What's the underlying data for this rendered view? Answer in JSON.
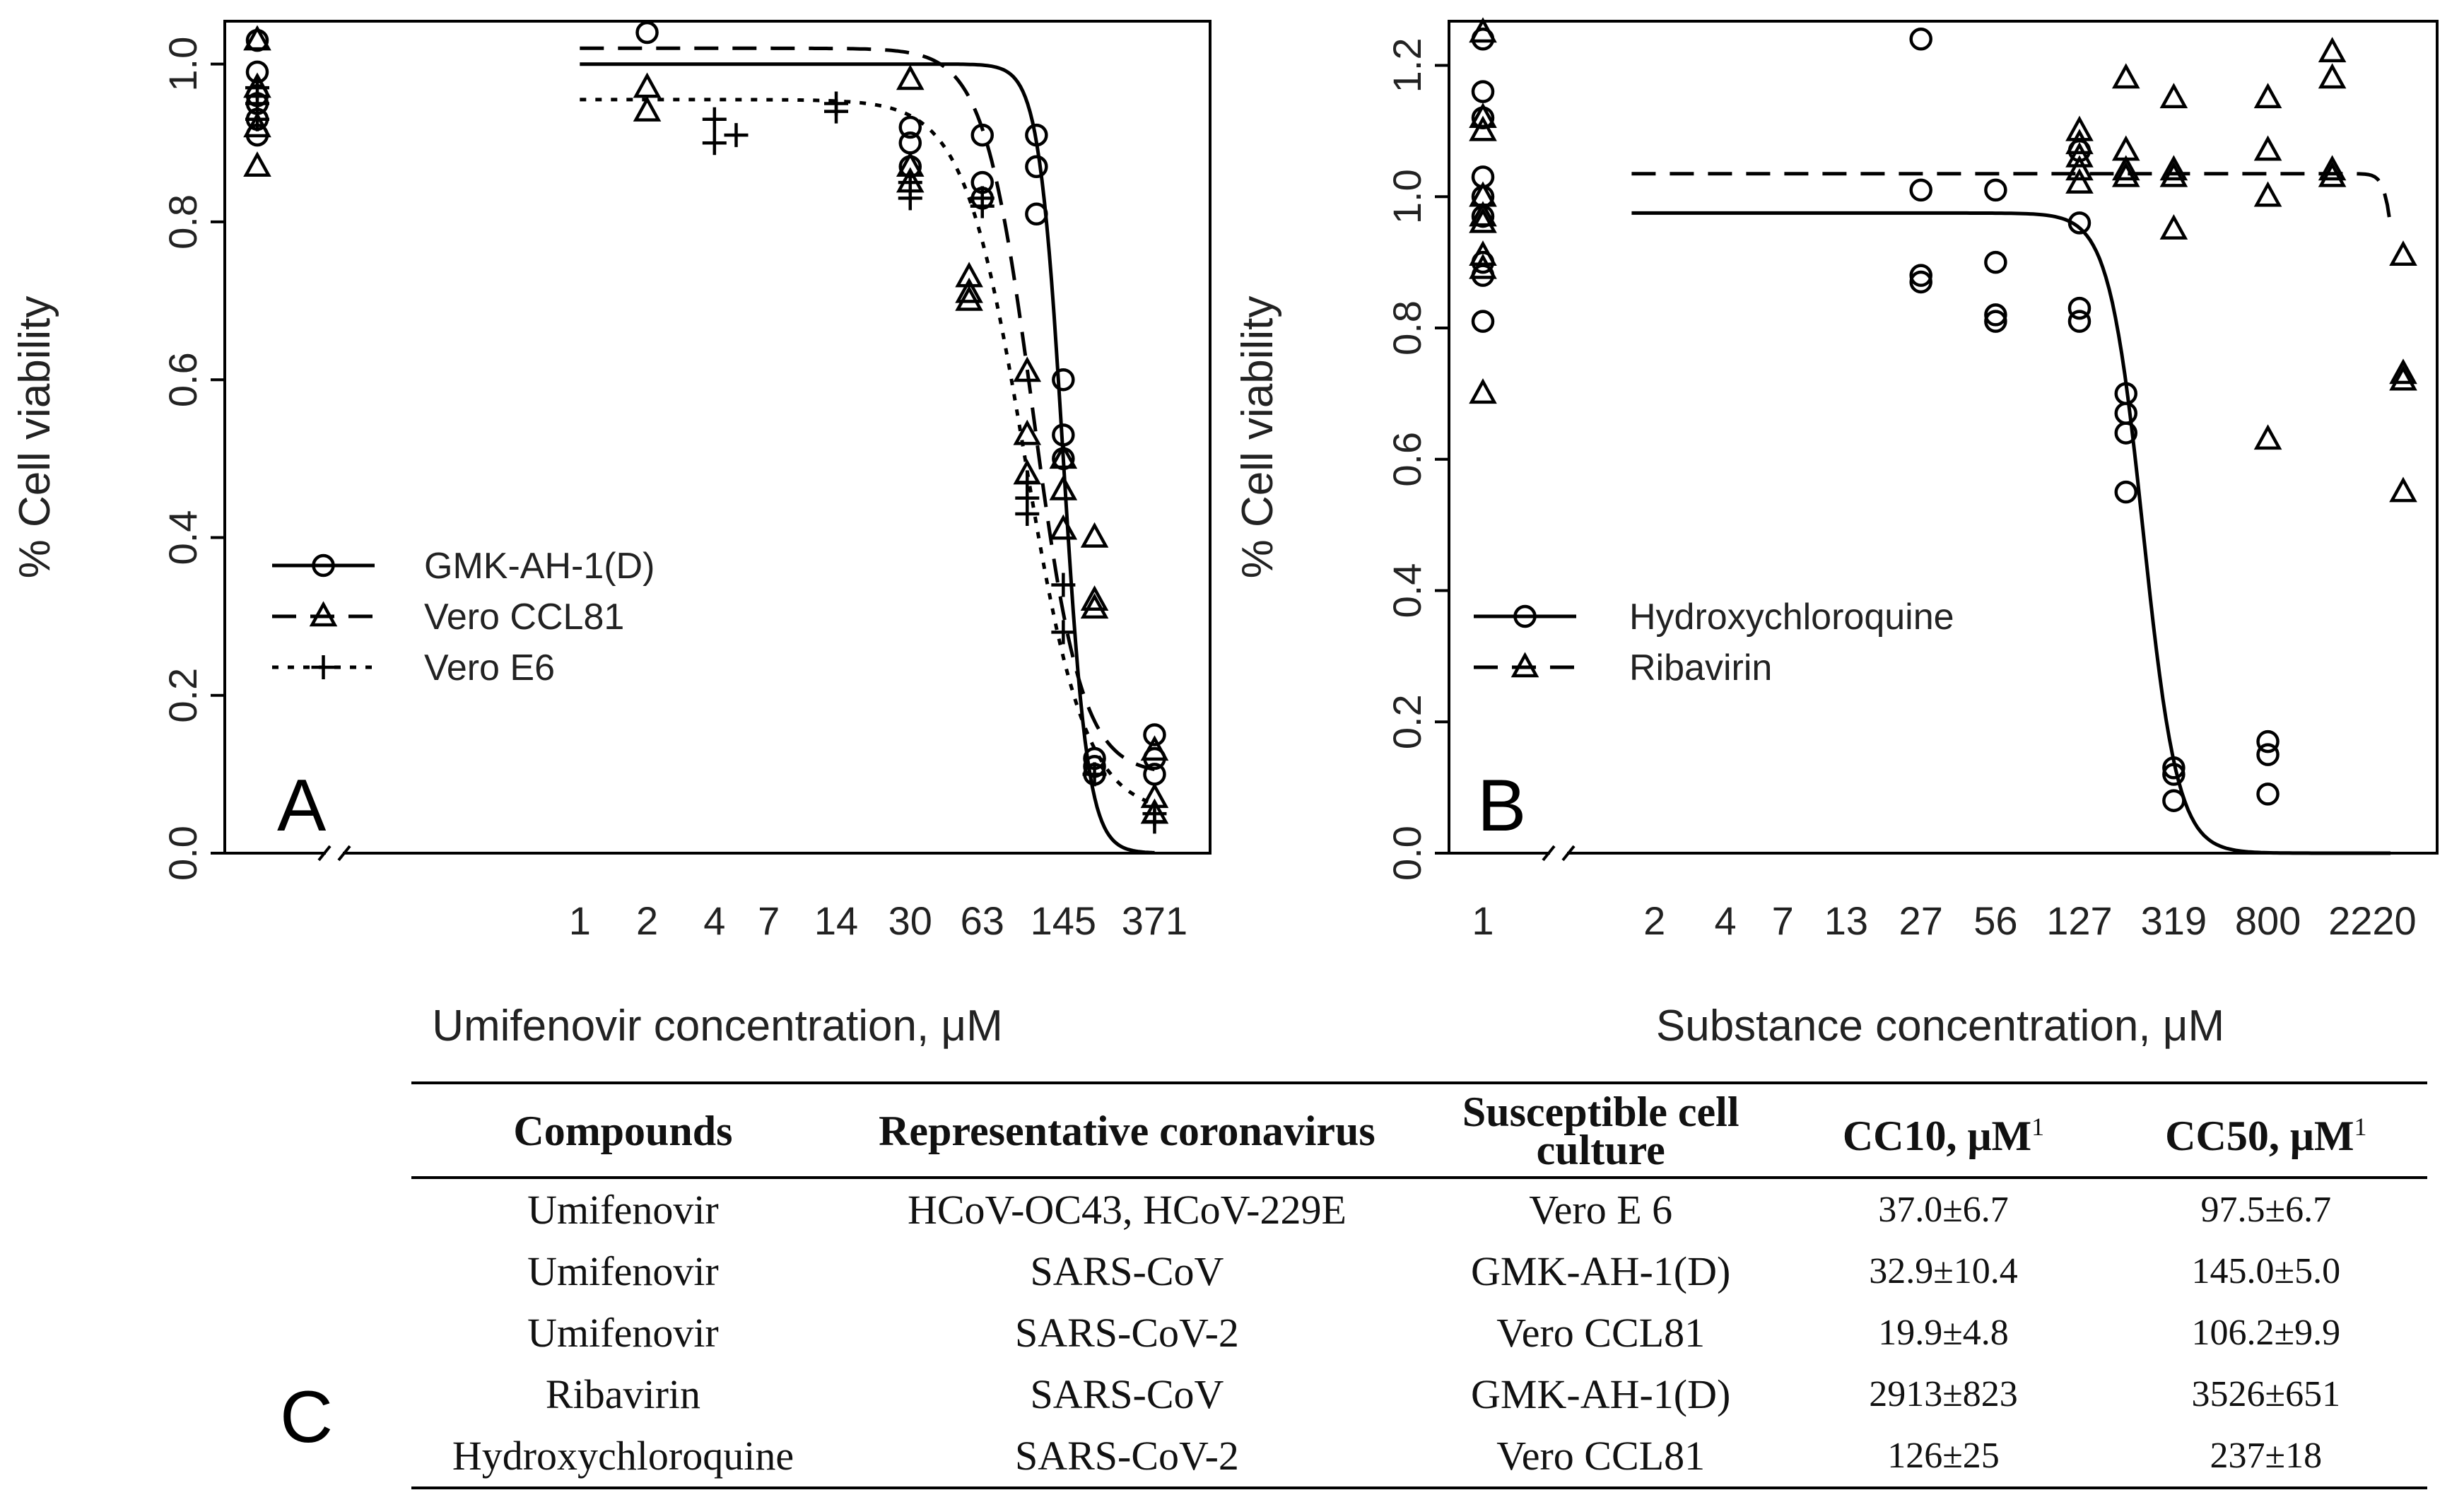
{
  "chart_data": [
    {
      "panel": "A",
      "type": "scatter",
      "xlabel": "Umifenovir concentration, μM",
      "ylabel": "% Cell viability",
      "xlim": [
        0.5,
        450
      ],
      "ylim": [
        0,
        1.04
      ],
      "x_scale": "log",
      "x_ticks": [
        1,
        2,
        4,
        7,
        14,
        30,
        63,
        145,
        371
      ],
      "y_ticks": [
        "0.0",
        "0.2",
        "0.4",
        "0.6",
        "0.8",
        "1.0"
      ],
      "axis_break": true,
      "legend_position": "center-left",
      "series": [
        {
          "name": "GMK-AH-1(D)",
          "marker": "circle",
          "line": "solid",
          "curve": {
            "top": 1.0,
            "bottom": 0.0,
            "ec50": 145,
            "hill": 8
          },
          "points": [
            [
              "control",
              1.03
            ],
            [
              "control",
              0.99
            ],
            [
              "control",
              0.96
            ],
            [
              "control",
              0.95
            ],
            [
              "control",
              0.93
            ],
            [
              "control",
              0.91
            ],
            [
              2,
              1.04
            ],
            [
              30,
              0.92
            ],
            [
              30,
              0.9
            ],
            [
              30,
              0.87
            ],
            [
              63,
              0.91
            ],
            [
              63,
              0.85
            ],
            [
              63,
              0.83
            ],
            [
              110,
              0.91
            ],
            [
              110,
              0.87
            ],
            [
              110,
              0.81
            ],
            [
              145,
              0.6
            ],
            [
              145,
              0.53
            ],
            [
              145,
              0.5
            ],
            [
              200,
              0.12
            ],
            [
              200,
              0.11
            ],
            [
              200,
              0.1
            ],
            [
              371,
              0.15
            ],
            [
              371,
              0.12
            ],
            [
              371,
              0.1
            ]
          ]
        },
        {
          "name": "Vero CCL81",
          "marker": "triangle",
          "line": "dashed",
          "curve": {
            "top": 1.02,
            "bottom": 0.1,
            "ec50": 106,
            "hill": 4
          },
          "points": [
            [
              "control",
              1.03
            ],
            [
              "control",
              0.97
            ],
            [
              "control",
              0.92
            ],
            [
              "control",
              0.87
            ],
            [
              2,
              0.97
            ],
            [
              2,
              0.94
            ],
            [
              30,
              0.98
            ],
            [
              30,
              0.87
            ],
            [
              30,
              0.85
            ],
            [
              55,
              0.73
            ],
            [
              55,
              0.71
            ],
            [
              55,
              0.7
            ],
            [
              100,
              0.61
            ],
            [
              100,
              0.53
            ],
            [
              100,
              0.48
            ],
            [
              145,
              0.5
            ],
            [
              145,
              0.46
            ],
            [
              145,
              0.41
            ],
            [
              200,
              0.4
            ],
            [
              200,
              0.32
            ],
            [
              200,
              0.31
            ],
            [
              371,
              0.13
            ],
            [
              371,
              0.07
            ],
            [
              371,
              0.05
            ]
          ]
        },
        {
          "name": "Vero E6",
          "marker": "plus",
          "line": "dotted",
          "curve": {
            "top": 0.955,
            "bottom": 0.05,
            "ec50": 97.5,
            "hill": 3.2
          },
          "points": [
            [
              "control",
              0.97
            ],
            [
              "control",
              0.95
            ],
            [
              "control",
              0.93
            ],
            [
              4,
              0.93
            ],
            [
              4,
              0.9
            ],
            [
              5,
              0.91
            ],
            [
              14,
              0.95
            ],
            [
              14,
              0.94
            ],
            [
              30,
              0.85
            ],
            [
              30,
              0.83
            ],
            [
              63,
              0.83
            ],
            [
              63,
              0.82
            ],
            [
              100,
              0.47
            ],
            [
              100,
              0.45
            ],
            [
              100,
              0.43
            ],
            [
              145,
              0.34
            ],
            [
              145,
              0.28
            ],
            [
              200,
              0.1
            ],
            [
              371,
              0.05
            ],
            [
              371,
              0.04
            ]
          ]
        }
      ]
    },
    {
      "panel": "B",
      "type": "scatter",
      "xlabel": "Substance concentration, μM",
      "ylabel": "% Cell viability",
      "xlim": [
        0.8,
        3000
      ],
      "ylim": [
        0,
        1.25
      ],
      "x_scale": "log",
      "x_ticks": [
        1,
        2,
        4,
        7,
        13,
        27,
        56,
        127,
        319,
        800,
        2220
      ],
      "y_ticks": [
        "0.0",
        "0.2",
        "0.4",
        "0.6",
        "0.8",
        "1.0",
        "1.2"
      ],
      "axis_break": true,
      "legend_position": "center-left",
      "series": [
        {
          "name": "Hydroxychloroquine",
          "marker": "circle",
          "line": "solid",
          "curve": {
            "top": 0.975,
            "bottom": 0.0,
            "ec50": 237,
            "hill": 6
          },
          "points": [
            [
              "control",
              1.24
            ],
            [
              "control",
              1.16
            ],
            [
              "control",
              1.12
            ],
            [
              "control",
              1.03
            ],
            [
              "control",
              1.0
            ],
            [
              "control",
              0.97
            ],
            [
              "control",
              0.9
            ],
            [
              "control",
              0.88
            ],
            [
              "control",
              0.81
            ],
            [
              27,
              1.24
            ],
            [
              27,
              1.01
            ],
            [
              27,
              0.88
            ],
            [
              27,
              0.87
            ],
            [
              56,
              1.01
            ],
            [
              56,
              0.9
            ],
            [
              56,
              0.82
            ],
            [
              56,
              0.81
            ],
            [
              127,
              1.07
            ],
            [
              127,
              0.96
            ],
            [
              127,
              0.83
            ],
            [
              127,
              0.81
            ],
            [
              200,
              0.7
            ],
            [
              200,
              0.67
            ],
            [
              200,
              0.64
            ],
            [
              200,
              0.55
            ],
            [
              319,
              0.13
            ],
            [
              319,
              0.12
            ],
            [
              319,
              0.08
            ],
            [
              800,
              0.17
            ],
            [
              800,
              0.15
            ],
            [
              800,
              0.09
            ]
          ]
        },
        {
          "name": "Ribavirin",
          "marker": "triangle",
          "line": "dashed",
          "curve": {
            "top": 1.035,
            "bottom": 0.72,
            "ec50": 2800,
            "hill": 20
          },
          "points": [
            [
              "control",
              1.25
            ],
            [
              "control",
              1.12
            ],
            [
              "control",
              1.1
            ],
            [
              "control",
              1.0
            ],
            [
              "control",
              0.97
            ],
            [
              "control",
              0.96
            ],
            [
              "control",
              0.91
            ],
            [
              "control",
              0.89
            ],
            [
              "control",
              0.7
            ],
            [
              127,
              1.1
            ],
            [
              127,
              1.08
            ],
            [
              127,
              1.06
            ],
            [
              127,
              1.04
            ],
            [
              127,
              1.02
            ],
            [
              200,
              1.18
            ],
            [
              200,
              1.07
            ],
            [
              200,
              1.04
            ],
            [
              200,
              1.03
            ],
            [
              319,
              1.15
            ],
            [
              319,
              1.04
            ],
            [
              319,
              1.03
            ],
            [
              319,
              0.95
            ],
            [
              800,
              1.15
            ],
            [
              800,
              1.07
            ],
            [
              800,
              1.0
            ],
            [
              800,
              0.63
            ],
            [
              1500,
              1.22
            ],
            [
              1500,
              1.18
            ],
            [
              1500,
              1.04
            ],
            [
              1500,
              1.03
            ],
            [
              3000,
              0.91
            ],
            [
              3000,
              0.73
            ],
            [
              3000,
              0.72
            ],
            [
              3000,
              0.55
            ]
          ]
        }
      ]
    },
    {
      "panel": "C",
      "type": "table",
      "columns": [
        "Compounds",
        "Representative coronavirus",
        "Susceptible cell culture",
        "CC10, μM",
        "CC50, μM"
      ],
      "column_footnote": "1",
      "rows": [
        [
          "Umifenovir",
          "HCoV-OC43, HCoV-229E",
          "Vero E 6",
          "37.0±6.7",
          "97.5±6.7"
        ],
        [
          "Umifenovir",
          "SARS-CoV",
          "GMK-AH-1(D)",
          "32.9±10.4",
          "145.0±5.0"
        ],
        [
          "Umifenovir",
          "SARS-CoV-2",
          "Vero CCL81",
          "19.9±4.8",
          "106.2±9.9"
        ],
        [
          "Ribavirin",
          "SARS-CoV",
          "GMK-AH-1(D)",
          "2913±823",
          "3526±651"
        ],
        [
          "Hydroxychloroquine",
          "SARS-CoV-2",
          "Vero CCL81",
          "126±25",
          "237±18"
        ]
      ]
    }
  ]
}
